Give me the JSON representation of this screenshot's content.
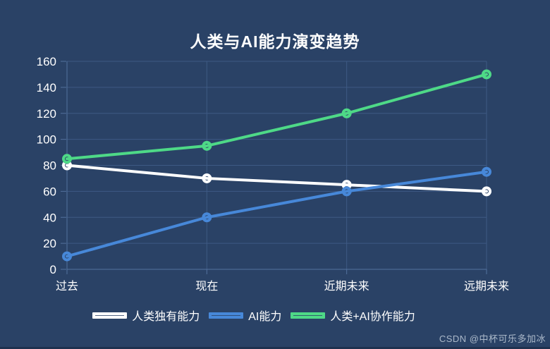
{
  "watermark": "CSDN @中杯可乐多加冰",
  "colors": {
    "background": "#2a4266",
    "grid_line": "#3e5a84",
    "axis_line": "#53719d",
    "text": "#ffffff"
  },
  "chart_data": {
    "type": "line",
    "title": "人类与AI能力演变趋势",
    "categories": [
      "过去",
      "现在",
      "近期未来",
      "远期未来"
    ],
    "series": [
      {
        "name": "人类独有能力",
        "color": "#ffffff",
        "values": [
          80,
          70,
          65,
          60
        ]
      },
      {
        "name": "AI能力",
        "color": "#4788d9",
        "values": [
          10,
          40,
          60,
          75
        ]
      },
      {
        "name": "人类+AI协作能力",
        "color": "#4ed987",
        "values": [
          85,
          95,
          120,
          150
        ]
      }
    ],
    "ylim": [
      0,
      160
    ],
    "yticks": [
      0,
      20,
      40,
      60,
      80,
      100,
      120,
      140,
      160
    ],
    "grid": true,
    "legend_position": "bottom"
  }
}
